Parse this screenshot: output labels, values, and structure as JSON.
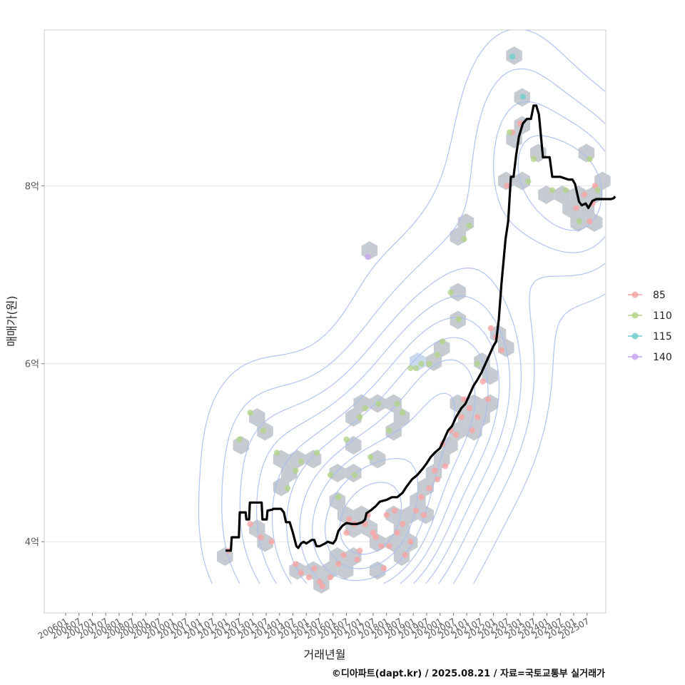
{
  "chart_data": {
    "type": "scatter",
    "xlabel": "거래년월",
    "ylabel": "매매가(원)",
    "caption": "©디아파트(dapt.kr) / 2025.08.21 / 자료=국토교통부 실거래가",
    "x_ticks": [
      "200601",
      "200607",
      "200701",
      "200707",
      "200801",
      "200807",
      "200901",
      "200907",
      "201001",
      "201007",
      "201101",
      "201107",
      "201201",
      "201207",
      "201301",
      "201307",
      "201401",
      "201407",
      "201501",
      "201507",
      "201601",
      "201607",
      "201701",
      "201707",
      "201801",
      "201807",
      "201901",
      "201907",
      "202001",
      "202007",
      "202101",
      "202107",
      "202201",
      "202207",
      "202301",
      "202307",
      "202401",
      "202407",
      "202501",
      "202507"
    ],
    "y_ticks": [
      {
        "value": 4,
        "label": "4억"
      },
      {
        "value": 6,
        "label": "6억"
      },
      {
        "value": 8,
        "label": "8억"
      }
    ],
    "ylim": [
      3.2,
      9.75
    ],
    "xlim": [
      2005.2,
      2026.2
    ],
    "grid": "horizontal",
    "legend_position": "right",
    "series": [
      {
        "name": "85",
        "color": "#F8A4A4",
        "points": [
          [
            2012.1,
            3.9
          ],
          [
            2012.9,
            4.2
          ],
          [
            2013.3,
            4.05
          ],
          [
            2013.7,
            4.0
          ],
          [
            2014.6,
            3.75
          ],
          [
            2014.8,
            3.65
          ],
          [
            2015.1,
            3.6
          ],
          [
            2015.3,
            3.7
          ],
          [
            2015.5,
            3.55
          ],
          [
            2015.6,
            3.5
          ],
          [
            2015.9,
            3.6
          ],
          [
            2016.2,
            3.75
          ],
          [
            2016.4,
            3.85
          ],
          [
            2016.5,
            4.1
          ],
          [
            2016.6,
            4.25
          ],
          [
            2016.8,
            4.2
          ],
          [
            2016.9,
            3.8
          ],
          [
            2017.0,
            3.9
          ],
          [
            2017.2,
            4.2
          ],
          [
            2017.3,
            4.3
          ],
          [
            2017.5,
            4.1
          ],
          [
            2017.6,
            4.05
          ],
          [
            2017.8,
            3.95
          ],
          [
            2017.9,
            3.7
          ],
          [
            2018.0,
            4.3
          ],
          [
            2018.1,
            3.95
          ],
          [
            2018.3,
            4.35
          ],
          [
            2018.4,
            4.1
          ],
          [
            2018.6,
            4.2
          ],
          [
            2018.7,
            3.85
          ],
          [
            2018.9,
            4.0
          ],
          [
            2019.1,
            4.35
          ],
          [
            2019.3,
            4.5
          ],
          [
            2019.4,
            4.3
          ],
          [
            2019.6,
            4.6
          ],
          [
            2019.8,
            4.8
          ],
          [
            2019.9,
            4.7
          ],
          [
            2020.1,
            5.1
          ],
          [
            2020.2,
            4.85
          ],
          [
            2020.4,
            5.25
          ],
          [
            2020.6,
            5.2
          ],
          [
            2020.8,
            5.4
          ],
          [
            2020.9,
            5.6
          ],
          [
            2021.1,
            5.5
          ],
          [
            2021.2,
            5.25
          ],
          [
            2021.4,
            5.4
          ],
          [
            2021.6,
            5.8
          ],
          [
            2021.8,
            5.6
          ],
          [
            2021.9,
            6.4
          ],
          [
            2022.1,
            6.3
          ],
          [
            2022.3,
            6.15
          ],
          [
            2022.5,
            8.0
          ],
          [
            2022.7,
            8.6
          ],
          [
            2023.0,
            8.7
          ],
          [
            2025.1,
            7.75
          ],
          [
            2025.4,
            7.9
          ],
          [
            2025.6,
            7.6
          ],
          [
            2025.7,
            7.8
          ],
          [
            2025.8,
            8.0
          ]
        ]
      },
      {
        "name": "110",
        "color": "#B3D38A",
        "points": [
          [
            2012.5,
            5.15
          ],
          [
            2012.9,
            5.45
          ],
          [
            2013.4,
            5.25
          ],
          [
            2013.9,
            5.0
          ],
          [
            2014.3,
            4.6
          ],
          [
            2014.6,
            4.8
          ],
          [
            2014.8,
            4.9
          ],
          [
            2015.4,
            5.0
          ],
          [
            2015.9,
            4.75
          ],
          [
            2016.2,
            4.5
          ],
          [
            2016.5,
            5.15
          ],
          [
            2016.8,
            4.75
          ],
          [
            2017.0,
            5.4
          ],
          [
            2017.2,
            5.5
          ],
          [
            2017.4,
            4.95
          ],
          [
            2017.7,
            5.55
          ],
          [
            2018.1,
            5.25
          ],
          [
            2018.4,
            5.55
          ],
          [
            2018.6,
            5.45
          ],
          [
            2018.9,
            5.95
          ],
          [
            2019.1,
            5.95
          ],
          [
            2019.3,
            6.0
          ],
          [
            2019.6,
            6.0
          ],
          [
            2019.9,
            6.1
          ],
          [
            2020.1,
            6.25
          ],
          [
            2020.4,
            6.8
          ],
          [
            2020.7,
            6.5
          ],
          [
            2020.9,
            7.4
          ],
          [
            2021.1,
            7.55
          ],
          [
            2021.4,
            6.0
          ],
          [
            2022.6,
            8.6
          ],
          [
            2023.3,
            8.05
          ],
          [
            2023.5,
            8.3
          ],
          [
            2024.2,
            7.95
          ],
          [
            2024.7,
            7.95
          ],
          [
            2025.2,
            7.6
          ],
          [
            2025.6,
            8.3
          ],
          [
            2025.9,
            7.95
          ]
        ]
      },
      {
        "name": "115",
        "color": "#6ECDCD",
        "points": [
          [
            2022.7,
            9.45
          ],
          [
            2023.1,
            9.0
          ]
        ]
      },
      {
        "name": "140",
        "color": "#C9A6EE",
        "points": [
          [
            2017.3,
            7.2
          ]
        ]
      }
    ],
    "trend_line": [
      [
        2011.98,
        3.9
      ],
      [
        2012.18,
        3.9
      ],
      [
        2012.21,
        4.05
      ],
      [
        2012.48,
        4.05
      ],
      [
        2012.51,
        4.33
      ],
      [
        2012.73,
        4.33
      ],
      [
        2012.76,
        4.25
      ],
      [
        2012.86,
        4.25
      ],
      [
        2012.89,
        4.44
      ],
      [
        2013.33,
        4.44
      ],
      [
        2013.36,
        4.25
      ],
      [
        2013.52,
        4.25
      ],
      [
        2013.55,
        4.35
      ],
      [
        2013.73,
        4.36
      ],
      [
        2013.76,
        4.37
      ],
      [
        2014.06,
        4.37
      ],
      [
        2014.16,
        4.33
      ],
      [
        2014.24,
        4.22
      ],
      [
        2014.38,
        4.22
      ],
      [
        2014.5,
        4.1
      ],
      [
        2014.63,
        3.95
      ],
      [
        2014.7,
        3.93
      ],
      [
        2014.8,
        3.98
      ],
      [
        2014.9,
        4.0
      ],
      [
        2015.0,
        3.98
      ],
      [
        2015.2,
        4.02
      ],
      [
        2015.3,
        4.02
      ],
      [
        2015.38,
        3.95
      ],
      [
        2015.5,
        3.95
      ],
      [
        2015.7,
        3.98
      ],
      [
        2015.8,
        4.0
      ],
      [
        2016.0,
        3.98
      ],
      [
        2016.1,
        4.02
      ],
      [
        2016.2,
        4.12
      ],
      [
        2016.35,
        4.18
      ],
      [
        2016.5,
        4.21
      ],
      [
        2016.7,
        4.2
      ],
      [
        2016.9,
        4.2
      ],
      [
        2017.1,
        4.22
      ],
      [
        2017.2,
        4.25
      ],
      [
        2017.25,
        4.32
      ],
      [
        2017.4,
        4.35
      ],
      [
        2017.6,
        4.4
      ],
      [
        2017.75,
        4.45
      ],
      [
        2018.0,
        4.47
      ],
      [
        2018.2,
        4.5
      ],
      [
        2018.4,
        4.5
      ],
      [
        2018.6,
        4.55
      ],
      [
        2018.75,
        4.62
      ],
      [
        2018.95,
        4.7
      ],
      [
        2019.15,
        4.75
      ],
      [
        2019.35,
        4.82
      ],
      [
        2019.5,
        4.88
      ],
      [
        2019.65,
        4.95
      ],
      [
        2019.8,
        5.0
      ],
      [
        2020.0,
        5.05
      ],
      [
        2020.15,
        5.15
      ],
      [
        2020.3,
        5.25
      ],
      [
        2020.45,
        5.3
      ],
      [
        2020.6,
        5.4
      ],
      [
        2020.8,
        5.5
      ],
      [
        2020.95,
        5.55
      ],
      [
        2021.1,
        5.65
      ],
      [
        2021.25,
        5.75
      ],
      [
        2021.4,
        5.82
      ],
      [
        2021.55,
        5.9
      ],
      [
        2021.7,
        6.0
      ],
      [
        2021.85,
        6.1
      ],
      [
        2022.0,
        6.2
      ],
      [
        2022.1,
        6.25
      ],
      [
        2022.2,
        6.5
      ],
      [
        2022.3,
        6.9
      ],
      [
        2022.45,
        7.4
      ],
      [
        2022.55,
        7.6
      ],
      [
        2022.65,
        8.1
      ],
      [
        2022.75,
        8.1
      ],
      [
        2022.85,
        8.35
      ],
      [
        2022.95,
        8.55
      ],
      [
        2023.1,
        8.7
      ],
      [
        2023.25,
        8.75
      ],
      [
        2023.4,
        8.75
      ],
      [
        2023.5,
        8.9
      ],
      [
        2023.6,
        8.9
      ],
      [
        2023.7,
        8.8
      ],
      [
        2023.85,
        8.32
      ],
      [
        2024.1,
        8.32
      ],
      [
        2024.2,
        8.1
      ],
      [
        2024.5,
        8.1
      ],
      [
        2024.8,
        8.07
      ],
      [
        2024.95,
        8.07
      ],
      [
        2025.05,
        8.02
      ],
      [
        2025.2,
        7.82
      ],
      [
        2025.3,
        7.78
      ],
      [
        2025.45,
        7.8
      ],
      [
        2025.55,
        7.75
      ],
      [
        2025.7,
        7.83
      ],
      [
        2025.85,
        7.85
      ],
      [
        2026.0,
        7.85
      ],
      [
        2026.25,
        7.85
      ],
      [
        2026.4,
        7.85
      ],
      [
        2026.5,
        7.86
      ],
      [
        2026.55,
        7.88
      ]
    ]
  }
}
